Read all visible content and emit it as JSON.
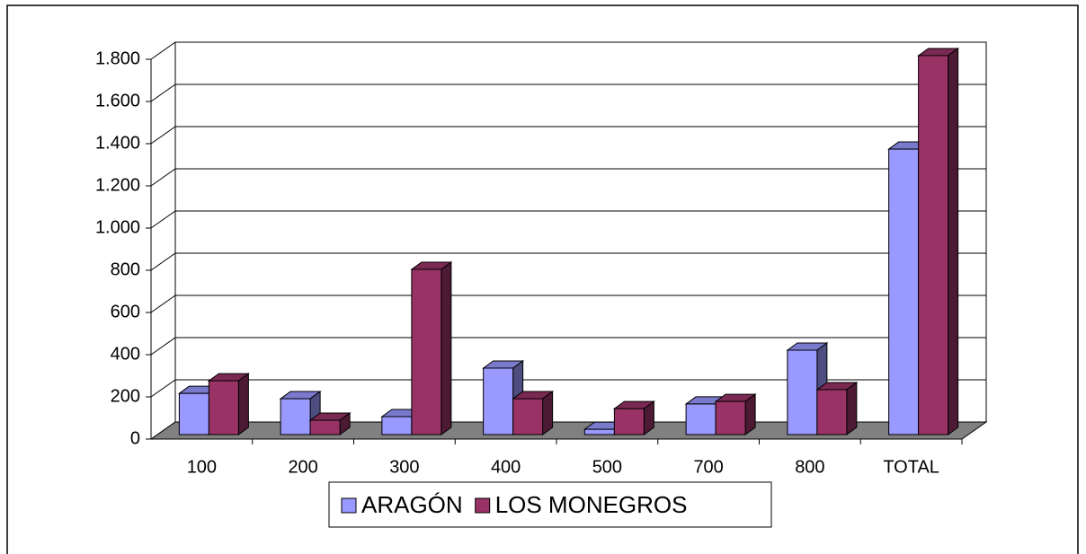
{
  "chart_data": {
    "type": "bar3d",
    "categories": [
      "100",
      "200",
      "300",
      "400",
      "500",
      "700",
      "800",
      "TOTAL"
    ],
    "series": [
      {
        "name": "ARAGÓN",
        "color": "#9999ff",
        "values": [
          195,
          170,
          85,
          315,
          25,
          145,
          400,
          1353
        ]
      },
      {
        "name": "LOS MONEGROS",
        "color": "#993366",
        "values": [
          255,
          68,
          783,
          170,
          123,
          157,
          213,
          1796
        ]
      }
    ],
    "ylim": [
      0,
      1800
    ],
    "yticks": [
      0,
      200,
      400,
      600,
      800,
      {
        "value": 1000,
        "label": "1.000"
      },
      {
        "value": 1200,
        "label": "1.200"
      },
      {
        "value": 1400,
        "label": "1.400"
      },
      {
        "value": 1600,
        "label": "1.600"
      },
      {
        "value": 1800,
        "label": "1.800"
      }
    ],
    "grid": true,
    "legend": "bottom"
  }
}
